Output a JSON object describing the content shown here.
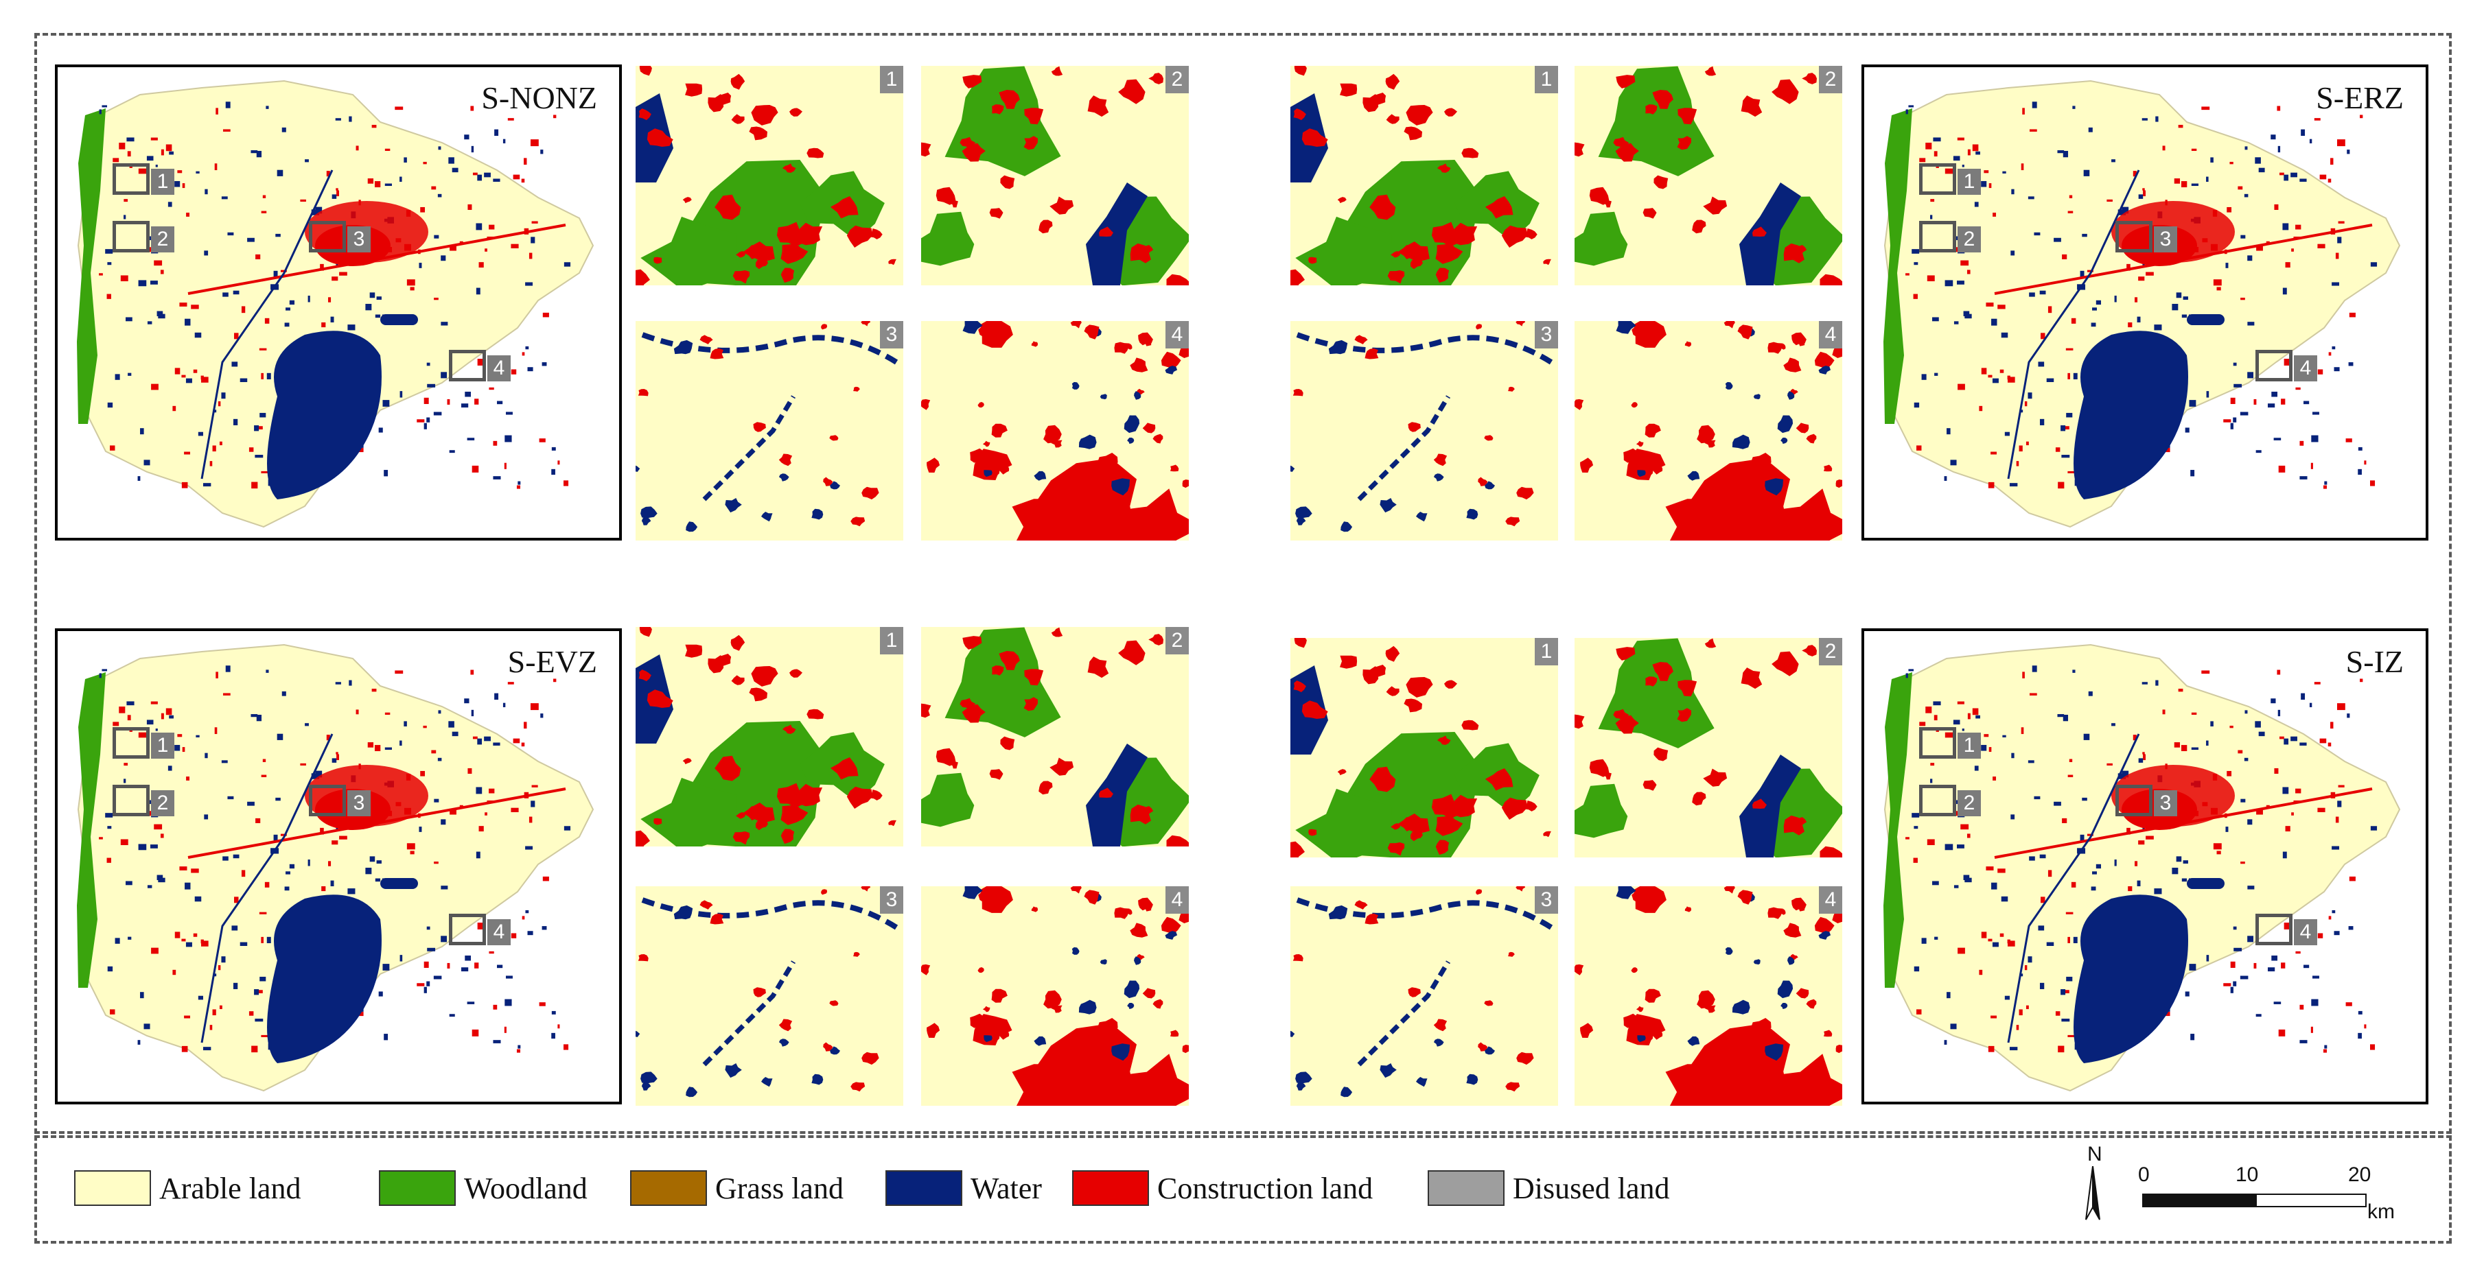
{
  "maps": [
    {
      "title": "S-NONZ"
    },
    {
      "title": "S-ERZ"
    },
    {
      "title": "S-EVZ"
    },
    {
      "title": "S-IZ"
    }
  ],
  "zoom_labels": [
    "1",
    "2",
    "3",
    "4"
  ],
  "legend": [
    {
      "label": "Arable land",
      "color": "#fffdc6"
    },
    {
      "label": "Woodland",
      "color": "#3aa40d"
    },
    {
      "label": "Grass land",
      "color": "#a66a00"
    },
    {
      "label": "Water",
      "color": "#07227a"
    },
    {
      "label": "Construction land",
      "color": "#e60000"
    },
    {
      "label": "Disused land",
      "color": "#9e9e9e"
    }
  ],
  "scale_bar": {
    "north": "N",
    "tick_0": "0",
    "tick_10": "10",
    "tick_20": "20",
    "unit": "km"
  }
}
